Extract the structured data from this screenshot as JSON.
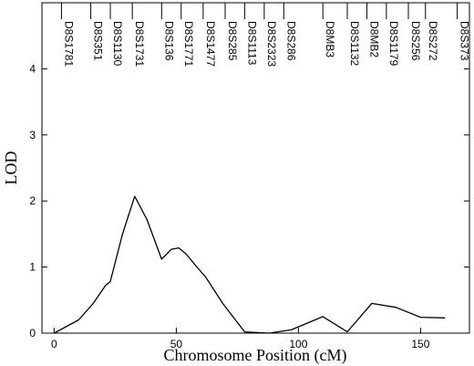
{
  "chart_data": {
    "type": "line",
    "title": "",
    "xlabel": "Chromosome Position (cM)",
    "ylabel": "LOD",
    "xlim": [
      -5,
      170
    ],
    "ylim": [
      0,
      5.0
    ],
    "xticks": [
      0,
      50,
      100,
      150
    ],
    "yticks": [
      0,
      1,
      2,
      3,
      4
    ],
    "grid": false,
    "series": [
      {
        "x": [
          0,
          10,
          16,
          21,
          23,
          28,
          33,
          38,
          44,
          48,
          51,
          54,
          58,
          62,
          69,
          78,
          88,
          97,
          110,
          120,
          130,
          140,
          150,
          160
        ],
        "values": [
          0.0,
          0.2,
          0.45,
          0.72,
          0.78,
          1.5,
          2.07,
          1.72,
          1.12,
          1.27,
          1.29,
          1.2,
          1.02,
          0.85,
          0.45,
          0.02,
          0.0,
          0.05,
          0.25,
          0.02,
          0.45,
          0.39,
          0.24,
          0.23
        ]
      }
    ],
    "markers": [
      {
        "label": "D8S1781",
        "x": 3
      },
      {
        "label": "D8S351",
        "x": 15
      },
      {
        "label": "D8S1130",
        "x": 23
      },
      {
        "label": "D8S1731",
        "x": 32
      },
      {
        "label": "D8S136",
        "x": 44
      },
      {
        "label": "D8S1771",
        "x": 52
      },
      {
        "label": "D8S1477",
        "x": 61
      },
      {
        "label": "D8S285",
        "x": 70
      },
      {
        "label": "D8S1113",
        "x": 78
      },
      {
        "label": "D8S2323",
        "x": 86
      },
      {
        "label": "D8S286",
        "x": 94
      },
      {
        "label": "D8MB3",
        "x": 110
      },
      {
        "label": "D8S1132",
        "x": 120
      },
      {
        "label": "D8MB2",
        "x": 128
      },
      {
        "label": "D8S1179",
        "x": 136
      },
      {
        "label": "D8S256",
        "x": 145
      },
      {
        "label": "D8S272",
        "x": 152
      },
      {
        "label": "D8S373",
        "x": 165
      }
    ]
  }
}
